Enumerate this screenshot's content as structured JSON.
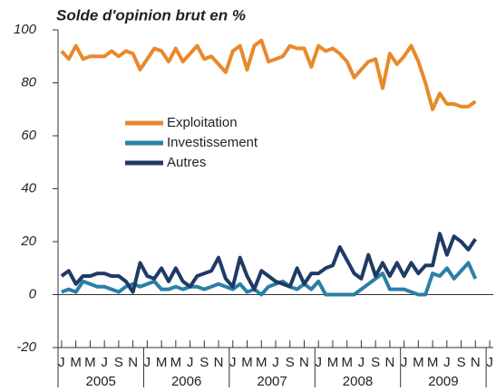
{
  "chart_data": {
    "type": "line",
    "title": "Solde d'opinion brut en %",
    "categories": [
      "J",
      null,
      "M",
      null,
      "M",
      null,
      "J",
      null,
      "S",
      null,
      "N",
      null,
      "J",
      null,
      "M",
      null,
      "M",
      null,
      "J",
      null,
      "S",
      null,
      "N",
      null,
      "J",
      null,
      "M",
      null,
      "M",
      null,
      "J",
      null,
      "S",
      null,
      "N",
      null,
      "J",
      null,
      "M",
      null,
      "M",
      null,
      "J",
      null,
      "S",
      null,
      "N",
      null,
      "J",
      null,
      "M",
      null,
      "M",
      null,
      "J",
      null,
      "S",
      null,
      "N",
      null,
      "J"
    ],
    "year_labels": [
      "2005",
      "2006",
      "2007",
      "2008",
      "2009"
    ],
    "series": [
      {
        "name": "Exploitation",
        "color": "#e8892b",
        "values": [
          92,
          89,
          94,
          89,
          90,
          90,
          90,
          92,
          90,
          92,
          91,
          85,
          89,
          93,
          92,
          88,
          93,
          88,
          91,
          94,
          89,
          90,
          87,
          84,
          92,
          94,
          85,
          94,
          96,
          88,
          89,
          90,
          94,
          93,
          93,
          86,
          94,
          92,
          93,
          91,
          88,
          82,
          85,
          88,
          89,
          78,
          91,
          87,
          90,
          94,
          88,
          80,
          70,
          76,
          72,
          72,
          71,
          71,
          73,
          null,
          null
        ]
      },
      {
        "name": "Investissement",
        "color": "#2b7fa6",
        "values": [
          1,
          2,
          1,
          5,
          4,
          3,
          3,
          2,
          1,
          3,
          4,
          3,
          4,
          5,
          2,
          2,
          3,
          2,
          3,
          3,
          2,
          3,
          4,
          3,
          2,
          4,
          1,
          2,
          0,
          3,
          4,
          5,
          3,
          2,
          4,
          2,
          5,
          0,
          0,
          0,
          0,
          0,
          2,
          4,
          6,
          8,
          2,
          2,
          2,
          1,
          0,
          0,
          8,
          7,
          10,
          6,
          9,
          12,
          6,
          null,
          null
        ]
      },
      {
        "name": "Autres",
        "color": "#1f3a66",
        "values": [
          7,
          9,
          4,
          7,
          7,
          8,
          8,
          7,
          7,
          5,
          1,
          12,
          7,
          6,
          10,
          5,
          10,
          5,
          3,
          7,
          8,
          9,
          14,
          6,
          3,
          14,
          7,
          2,
          9,
          7,
          5,
          4,
          3,
          10,
          4,
          8,
          8,
          10,
          11,
          18,
          13,
          8,
          6,
          15,
          7,
          12,
          7,
          12,
          7,
          12,
          8,
          11,
          11,
          23,
          15,
          22,
          20,
          17,
          21,
          null,
          null
        ]
      }
    ],
    "ylim": [
      -20,
      100
    ],
    "yticks": [
      -20,
      0,
      20,
      40,
      60,
      80,
      100
    ]
  }
}
